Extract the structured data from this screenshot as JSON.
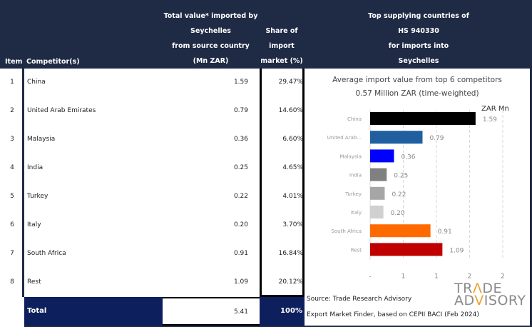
{
  "header": {
    "item": "Item",
    "competitor": "Competitor(s)",
    "value_lines": [
      "Total value* imported by",
      "Seychelles",
      "from source country",
      "(Mn ZAR)"
    ],
    "share_lines": [
      "Share of",
      "import",
      "market (%)"
    ],
    "top_lines": [
      "Top supplying countries of",
      "HS 940330",
      "for imports into",
      "Seychelles"
    ]
  },
  "rows": [
    {
      "item": "1",
      "competitor": "China",
      "value": "1.59",
      "share": "29.47%"
    },
    {
      "item": "2",
      "competitor": "United Arab Emirates",
      "value": "0.79",
      "share": "14.60%"
    },
    {
      "item": "3",
      "competitor": "Malaysia",
      "value": "0.36",
      "share": "6.60%"
    },
    {
      "item": "4",
      "competitor": "India",
      "value": "0.25",
      "share": "4.65%"
    },
    {
      "item": "5",
      "competitor": "Turkey",
      "value": "0.22",
      "share": "4.01%"
    },
    {
      "item": "6",
      "competitor": "Italy",
      "value": "0.20",
      "share": "3.70%"
    },
    {
      "item": "7",
      "competitor": "South Africa",
      "value": "0.91",
      "share": "16.84%"
    },
    {
      "item": "8",
      "competitor": "Rest",
      "value": "1.09",
      "share": "20.12%"
    }
  ],
  "total": {
    "label": "Total",
    "value": "5.41",
    "share": "100%"
  },
  "chart_data": {
    "type": "bar",
    "orientation": "horizontal",
    "title": "Average import value from top 6 competitors",
    "subtitle": "0.57 Million ZAR (time-weighted)",
    "unit_label": "ZAR Mn",
    "categories": [
      "China",
      "United Arab...",
      "Malaysia",
      "India",
      "Turkey",
      "Italy",
      "South Africa",
      "Rest"
    ],
    "values": [
      1.59,
      0.79,
      0.36,
      0.25,
      0.22,
      0.2,
      0.91,
      1.09
    ],
    "data_labels": [
      "1.59",
      "0.79",
      "0.36",
      "0.25",
      "0.22",
      "0.20",
      "0.91",
      "1.09"
    ],
    "colors": [
      "#000000",
      "#1f5fa0",
      "#0000ff",
      "#808080",
      "#a6a6a6",
      "#d0d0d0",
      "#ff6a00",
      "#c00000"
    ],
    "x_ticks": [
      0,
      0.5,
      1,
      1.5,
      2
    ],
    "x_tick_labels": [
      "-",
      "1",
      "1",
      "2",
      "2"
    ],
    "xlim": [
      0,
      2
    ],
    "grid": true
  },
  "source": {
    "line1": "Source: Trade Research Advisory",
    "line2": "Export Market Finder, based on CEPII BACI (Feb 2024)"
  },
  "logo": {
    "line1_pre": "TR",
    "line1_a": "Λ",
    "line1_post": "DE",
    "line2_pre": "AD",
    "line2_a": "V",
    "line2_post": "ISORY"
  }
}
